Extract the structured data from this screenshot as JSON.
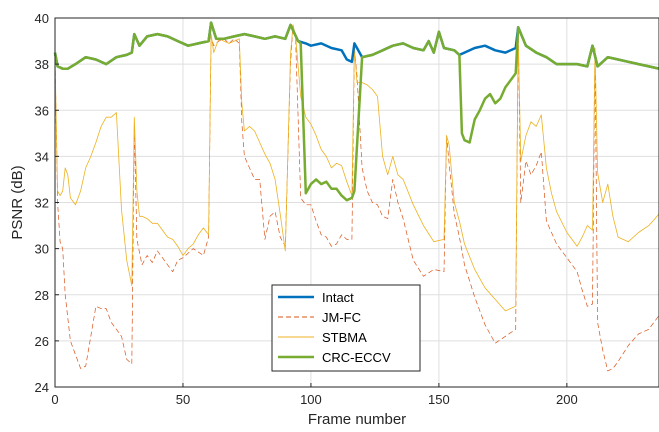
{
  "chart_data": {
    "type": "line",
    "xlabel": "Frame number",
    "ylabel": "PSNR (dB)",
    "xlim": [
      0,
      236
    ],
    "ylim": [
      24,
      40
    ],
    "xticks": [
      0,
      50,
      100,
      150,
      200
    ],
    "yticks": [
      24,
      26,
      28,
      30,
      32,
      34,
      36,
      38,
      40
    ],
    "grid": true,
    "legend_position": "bottom-center",
    "series": [
      {
        "name": "Intact",
        "color": "#0072BD",
        "style": "solid",
        "width": 2.5,
        "x": [
          0,
          1,
          3,
          5,
          8,
          12,
          16,
          20,
          24,
          28,
          30,
          31,
          33,
          36,
          40,
          44,
          48,
          52,
          56,
          60,
          61,
          63,
          66,
          70,
          74,
          78,
          82,
          86,
          90,
          92,
          95,
          98,
          100,
          104,
          108,
          112,
          114,
          116,
          117,
          120,
          124,
          128,
          132,
          136,
          140,
          144,
          146,
          148,
          150,
          152,
          156,
          158,
          160,
          164,
          168,
          172,
          176,
          180,
          181,
          184,
          188,
          192,
          196,
          200,
          204,
          208,
          210,
          212,
          216,
          220,
          224,
          228,
          232,
          236
        ],
        "y": [
          38.5,
          37.9,
          37.8,
          37.8,
          38.0,
          38.3,
          38.2,
          38.0,
          38.3,
          38.4,
          38.5,
          39.3,
          38.8,
          39.2,
          39.3,
          39.2,
          39.0,
          38.8,
          38.9,
          39.0,
          39.8,
          39.1,
          39.1,
          39.2,
          39.3,
          39.2,
          39.1,
          39.2,
          39.1,
          39.7,
          39.0,
          38.9,
          38.8,
          38.9,
          38.7,
          38.6,
          38.2,
          38.1,
          38.9,
          38.3,
          38.4,
          38.6,
          38.8,
          38.9,
          38.7,
          38.6,
          39.0,
          38.5,
          39.4,
          38.7,
          38.6,
          38.4,
          38.5,
          38.7,
          38.8,
          38.6,
          38.5,
          38.7,
          39.6,
          38.8,
          38.5,
          38.3,
          38.0,
          38.0,
          38.0,
          37.9,
          38.8,
          37.9,
          38.3,
          38.2,
          38.1,
          38.0,
          37.9,
          37.8
        ]
      },
      {
        "name": "JM-FC",
        "color": "#D95319",
        "style": "dashed",
        "width": 0.7,
        "x": [
          0,
          1,
          2,
          3,
          4,
          6,
          8,
          10,
          12,
          14,
          16,
          18,
          20,
          22,
          24,
          26,
          28,
          30,
          31,
          32,
          34,
          36,
          38,
          40,
          44,
          46,
          48,
          50,
          54,
          58,
          60,
          61,
          62,
          64,
          66,
          68,
          70,
          72,
          73,
          74,
          78,
          80,
          82,
          84,
          86,
          88,
          90,
          92,
          93,
          94,
          96,
          98,
          100,
          102,
          104,
          106,
          108,
          110,
          112,
          114,
          116,
          117,
          118,
          120,
          122,
          124,
          126,
          128,
          130,
          132,
          134,
          136,
          140,
          144,
          148,
          152,
          153,
          154,
          156,
          158,
          160,
          164,
          168,
          172,
          176,
          180,
          181,
          182,
          184,
          186,
          188,
          190,
          192,
          196,
          200,
          204,
          206,
          208,
          210,
          211,
          212,
          214,
          216,
          218,
          220,
          224,
          228,
          232,
          236
        ],
        "y": [
          38.4,
          32.0,
          30.3,
          30.0,
          28.0,
          26.0,
          25.4,
          24.8,
          24.9,
          26.2,
          27.5,
          27.4,
          27.4,
          26.8,
          26.5,
          26.2,
          25.2,
          25.0,
          35.3,
          30.4,
          29.3,
          29.7,
          29.4,
          29.9,
          29.3,
          29.0,
          29.5,
          29.6,
          30.0,
          29.7,
          30.5,
          39.2,
          38.8,
          39.0,
          39.1,
          38.9,
          39.1,
          38.9,
          35.5,
          34.0,
          33.0,
          33.0,
          30.4,
          31.4,
          31.6,
          30.5,
          30.1,
          38.0,
          39.7,
          39.1,
          32.2,
          31.9,
          31.9,
          31.2,
          30.6,
          30.5,
          30.1,
          30.2,
          30.6,
          30.4,
          30.4,
          38.7,
          37.5,
          33.5,
          32.5,
          32.0,
          31.9,
          31.4,
          31.3,
          33.0,
          32.0,
          31.3,
          29.5,
          28.8,
          29.1,
          29.0,
          34.9,
          33.7,
          31.5,
          30.5,
          29.3,
          27.9,
          26.7,
          25.9,
          26.2,
          26.5,
          39.4,
          32.0,
          33.8,
          33.2,
          33.6,
          34.2,
          31.2,
          30.2,
          29.6,
          29.0,
          28.2,
          27.5,
          27.6,
          38.6,
          26.8,
          25.6,
          24.7,
          24.8,
          25.1,
          25.8,
          26.3,
          26.5,
          27.1
        ]
      },
      {
        "name": "STBMA",
        "color": "#EDB120",
        "style": "solid",
        "width": 0.8,
        "x": [
          0,
          1,
          2,
          3,
          4,
          5,
          6,
          8,
          10,
          12,
          14,
          16,
          18,
          20,
          22,
          24,
          26,
          28,
          30,
          31,
          32,
          33,
          34,
          36,
          38,
          40,
          42,
          44,
          46,
          48,
          50,
          52,
          54,
          56,
          58,
          60,
          61,
          62,
          64,
          66,
          68,
          70,
          72,
          73,
          74,
          76,
          78,
          80,
          82,
          84,
          86,
          88,
          90,
          92,
          93,
          94,
          96,
          98,
          100,
          102,
          104,
          106,
          108,
          110,
          112,
          114,
          116,
          117,
          118,
          120,
          122,
          124,
          126,
          128,
          130,
          132,
          134,
          136,
          140,
          144,
          148,
          152,
          153,
          154,
          156,
          158,
          160,
          164,
          168,
          172,
          176,
          180,
          181,
          182,
          184,
          186,
          188,
          190,
          192,
          194,
          196,
          200,
          204,
          206,
          208,
          210,
          211,
          212,
          214,
          216,
          218,
          220,
          224,
          228,
          232,
          236
        ],
        "y": [
          38.3,
          32.5,
          32.3,
          32.5,
          33.5,
          33.2,
          32.2,
          31.9,
          32.5,
          33.5,
          34.0,
          34.6,
          35.3,
          35.7,
          35.7,
          35.9,
          31.7,
          29.5,
          28.4,
          35.7,
          32.5,
          31.4,
          31.4,
          31.3,
          31.1,
          31.1,
          30.8,
          30.5,
          30.4,
          30.1,
          29.7,
          30.0,
          30.2,
          30.6,
          30.9,
          30.6,
          39.3,
          38.5,
          39.1,
          39.0,
          38.9,
          39.0,
          39.1,
          36.3,
          35.1,
          35.3,
          35.1,
          34.6,
          34.1,
          33.7,
          33.0,
          31.5,
          29.9,
          38.4,
          39.7,
          39.2,
          36.6,
          35.7,
          35.4,
          34.9,
          34.3,
          34.0,
          33.5,
          33.7,
          33.6,
          32.9,
          32.3,
          38.7,
          37.2,
          37.2,
          37.1,
          36.9,
          36.6,
          34.0,
          33.2,
          34.0,
          33.2,
          33.0,
          31.9,
          31.0,
          30.3,
          30.4,
          34.9,
          34.5,
          32.0,
          31.2,
          30.2,
          29.1,
          28.3,
          27.8,
          27.3,
          27.5,
          39.3,
          33.8,
          34.9,
          35.5,
          35.3,
          35.8,
          33.5,
          32.4,
          31.6,
          30.7,
          30.1,
          30.5,
          31.0,
          30.8,
          38.7,
          33.3,
          32.0,
          32.8,
          31.4,
          30.5,
          30.3,
          30.7,
          31.0,
          31.5
        ]
      },
      {
        "name": "CRC-ECCV",
        "color": "#77AC30",
        "style": "solid",
        "width": 2.5,
        "x": [
          0,
          1,
          3,
          5,
          8,
          12,
          16,
          20,
          24,
          28,
          30,
          31,
          33,
          36,
          40,
          44,
          48,
          52,
          56,
          60,
          61,
          63,
          66,
          70,
          74,
          78,
          82,
          86,
          90,
          92,
          95,
          96,
          98,
          100,
          102,
          104,
          106,
          108,
          110,
          112,
          114,
          116,
          117,
          120,
          124,
          128,
          132,
          136,
          140,
          144,
          146,
          148,
          150,
          152,
          156,
          158,
          159,
          160,
          162,
          164,
          166,
          168,
          170,
          172,
          174,
          176,
          178,
          180,
          181,
          184,
          188,
          192,
          196,
          200,
          204,
          208,
          210,
          212,
          216,
          220,
          224,
          228,
          232,
          236
        ],
        "y": [
          38.5,
          37.9,
          37.8,
          37.8,
          38.0,
          38.3,
          38.2,
          38.0,
          38.3,
          38.4,
          38.5,
          39.3,
          38.8,
          39.2,
          39.3,
          39.2,
          39.0,
          38.8,
          38.9,
          39.0,
          39.8,
          39.1,
          39.1,
          39.2,
          39.3,
          39.2,
          39.1,
          39.2,
          39.1,
          39.7,
          39.0,
          38.9,
          32.4,
          32.8,
          33.0,
          32.8,
          32.9,
          32.6,
          32.6,
          32.3,
          32.1,
          32.2,
          32.5,
          38.3,
          38.4,
          38.6,
          38.8,
          38.9,
          38.7,
          38.6,
          39.0,
          38.5,
          39.4,
          38.7,
          38.6,
          38.4,
          35.0,
          34.7,
          34.6,
          35.6,
          36.0,
          36.5,
          36.7,
          36.3,
          36.5,
          37.0,
          37.3,
          37.6,
          39.6,
          38.8,
          38.5,
          38.3,
          38.0,
          38.0,
          38.0,
          37.9,
          38.8,
          37.9,
          38.3,
          38.2,
          38.1,
          38.0,
          37.9,
          37.8
        ]
      }
    ]
  }
}
